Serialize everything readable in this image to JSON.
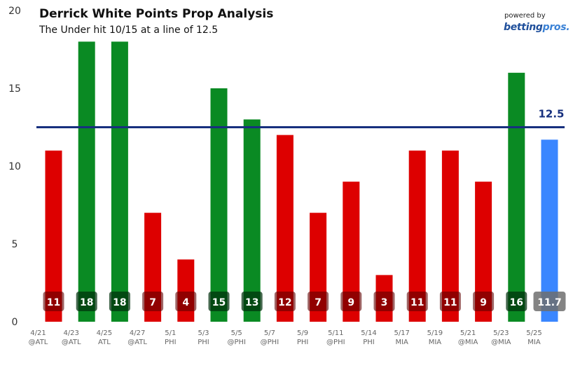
{
  "branding": {
    "powered_by": "powered by",
    "logo_part1": "betting",
    "logo_part2": "pros."
  },
  "colors": {
    "over": "#0a8a23",
    "under": "#dd0000",
    "projection": "#3a86ff",
    "line": "#17307e"
  },
  "chart_data": {
    "type": "bar",
    "title": "Derrick White Points Prop Analysis",
    "subtitle": "The Under hit 10/15 at a line of 12.5",
    "ylim": [
      0,
      20
    ],
    "yticks": [
      0,
      5,
      10,
      15,
      20
    ],
    "reference_line": {
      "value": 12.5,
      "label": "12.5"
    },
    "categories": [
      {
        "date": "4/21",
        "opp": "@ATL"
      },
      {
        "date": "4/23",
        "opp": "@ATL"
      },
      {
        "date": "4/25",
        "opp": "ATL"
      },
      {
        "date": "4/27",
        "opp": "@ATL"
      },
      {
        "date": "5/1",
        "opp": "PHI"
      },
      {
        "date": "5/3",
        "opp": "PHI"
      },
      {
        "date": "5/5",
        "opp": "@PHI"
      },
      {
        "date": "5/7",
        "opp": "@PHI"
      },
      {
        "date": "5/9",
        "opp": "PHI"
      },
      {
        "date": "5/11",
        "opp": "@PHI"
      },
      {
        "date": "5/14",
        "opp": "PHI"
      },
      {
        "date": "5/17",
        "opp": "MIA"
      },
      {
        "date": "5/19",
        "opp": "MIA"
      },
      {
        "date": "5/21",
        "opp": "@MIA"
      },
      {
        "date": "5/23",
        "opp": "@MIA"
      },
      {
        "date": "5/25",
        "opp": "MIA"
      }
    ],
    "values": [
      11,
      18,
      18,
      7,
      4,
      15,
      13,
      12,
      7,
      9,
      3,
      11,
      11,
      9,
      16,
      11.7
    ],
    "labels": [
      "11",
      "18",
      "18",
      "7",
      "4",
      "15",
      "13",
      "12",
      "7",
      "9",
      "3",
      "11",
      "11",
      "9",
      "16",
      "11.7"
    ],
    "status": [
      "under",
      "over",
      "over",
      "under",
      "under",
      "over",
      "over",
      "under",
      "under",
      "under",
      "under",
      "under",
      "under",
      "under",
      "over",
      "projection"
    ]
  }
}
